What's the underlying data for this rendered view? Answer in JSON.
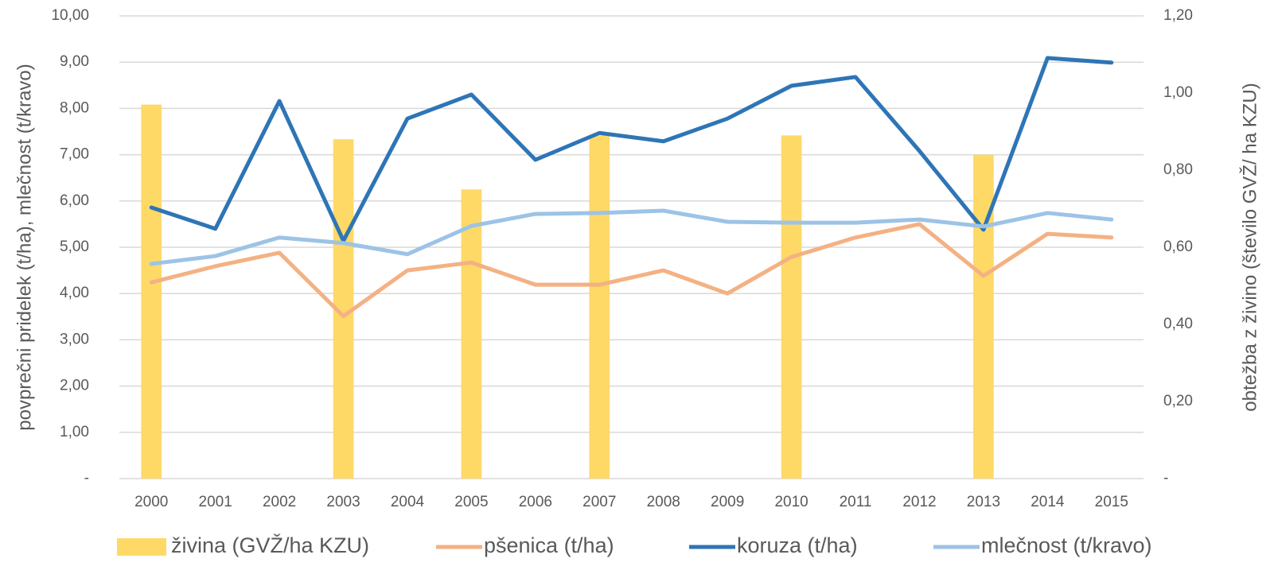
{
  "chart_data": {
    "type": "combo",
    "ylabel": "povprečni pridelek (t/ha), mlečnost (t/kravo)",
    "y2label": "obtežba z živino (število GVŽ/ ha KZU)",
    "categories": [
      "2000",
      "2001",
      "2002",
      "2003",
      "2004",
      "2005",
      "2006",
      "2007",
      "2008",
      "2009",
      "2010",
      "2011",
      "2012",
      "2013",
      "2014",
      "2015"
    ],
    "series": [
      {
        "name": "živina (GVŽ/ha KZU)",
        "type": "bar",
        "axis": "y2",
        "color": "#FFD966",
        "values": [
          0.97,
          null,
          null,
          0.88,
          null,
          0.75,
          null,
          0.89,
          null,
          null,
          0.89,
          null,
          null,
          0.84,
          null,
          null
        ]
      },
      {
        "name": "pšenica (t/ha)",
        "type": "line",
        "color": "#F4B183",
        "values": [
          4.24,
          4.59,
          4.88,
          3.51,
          4.5,
          4.67,
          4.19,
          4.19,
          4.5,
          4.0,
          4.79,
          5.21,
          5.5,
          4.38,
          5.29,
          5.21
        ]
      },
      {
        "name": "koruza (t/ha)",
        "type": "line",
        "color": "#2E75B6",
        "values": [
          5.86,
          5.4,
          8.16,
          5.14,
          7.78,
          8.3,
          6.89,
          7.47,
          7.29,
          7.78,
          8.49,
          8.68,
          7.08,
          5.38,
          9.09,
          8.99
        ]
      },
      {
        "name": "mlečnost (t/kravo)",
        "type": "line",
        "color": "#9DC3E6",
        "values": [
          4.64,
          4.81,
          5.21,
          5.09,
          4.85,
          5.46,
          5.72,
          5.74,
          5.79,
          5.55,
          5.53,
          5.53,
          5.6,
          5.45,
          5.74,
          5.6
        ]
      }
    ],
    "ylim": [
      0,
      10
    ],
    "yticks": [
      {
        "value": 0,
        "label": "-"
      },
      {
        "value": 1,
        "label": "1,00"
      },
      {
        "value": 2,
        "label": "2,00"
      },
      {
        "value": 3,
        "label": "3,00"
      },
      {
        "value": 4,
        "label": "4,00"
      },
      {
        "value": 5,
        "label": "5,00"
      },
      {
        "value": 6,
        "label": "6,00"
      },
      {
        "value": 7,
        "label": "7,00"
      },
      {
        "value": 8,
        "label": "8,00"
      },
      {
        "value": 9,
        "label": "9,00"
      },
      {
        "value": 10,
        "label": "10,00"
      }
    ],
    "y2lim": [
      0,
      1.2
    ],
    "y2ticks": [
      {
        "value": 0,
        "label": "-"
      },
      {
        "value": 0.2,
        "label": "0,20"
      },
      {
        "value": 0.4,
        "label": "0,40"
      },
      {
        "value": 0.6,
        "label": "0,60"
      },
      {
        "value": 0.8,
        "label": "0,80"
      },
      {
        "value": 1.0,
        "label": "1,00"
      },
      {
        "value": 1.2,
        "label": "1,20"
      }
    ],
    "grid": true,
    "legend": "bottom"
  }
}
